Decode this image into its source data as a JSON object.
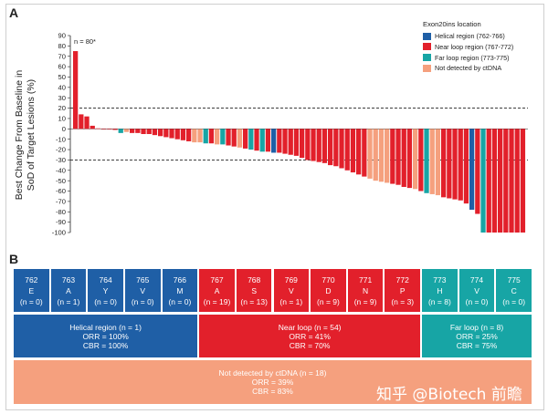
{
  "panel_a_letter": "A",
  "panel_b_letter": "B",
  "watermark": "知乎 @Biotech 前瞻",
  "colors": {
    "helical": "#1f5fa6",
    "near_loop": "#e2202b",
    "far_loop": "#17a5a5",
    "not_detected": "#f5a07e"
  },
  "chart_data": {
    "type": "bar",
    "ylabel_line1": "Best Change From Baseline in",
    "ylabel_line2": "SoD of Target Lesions (%)",
    "ylim": [
      -100,
      90
    ],
    "yticks": [
      90,
      80,
      70,
      60,
      50,
      40,
      30,
      20,
      10,
      0,
      -10,
      -20,
      -30,
      -40,
      -50,
      -60,
      -70,
      -80,
      -90,
      -100
    ],
    "reference_lines": [
      20,
      -30
    ],
    "annotation": "n = 80*",
    "legend": {
      "title": "Exon20ins location",
      "entries": [
        {
          "label": "Helical region (762-766)",
          "key": "helical"
        },
        {
          "label": "Near loop region (767-772)",
          "key": "near_loop"
        },
        {
          "label": "Far loop region (773-775)",
          "key": "far_loop"
        },
        {
          "label": "Not detected by ctDNA",
          "key": "not_detected"
        }
      ]
    },
    "bars": [
      {
        "v": 75,
        "c": "near_loop"
      },
      {
        "v": 14,
        "c": "near_loop"
      },
      {
        "v": 12,
        "c": "near_loop"
      },
      {
        "v": 3,
        "c": "near_loop"
      },
      {
        "v": 0.5,
        "c": "near_loop"
      },
      {
        "v": 0,
        "c": "near_loop"
      },
      {
        "v": 0,
        "c": "near_loop"
      },
      {
        "v": -1,
        "c": "near_loop"
      },
      {
        "v": -4,
        "c": "far_loop"
      },
      {
        "v": -3,
        "c": "not_detected"
      },
      {
        "v": -4,
        "c": "near_loop"
      },
      {
        "v": -4,
        "c": "near_loop"
      },
      {
        "v": -5,
        "c": "near_loop"
      },
      {
        "v": -5,
        "c": "near_loop"
      },
      {
        "v": -6,
        "c": "near_loop"
      },
      {
        "v": -7,
        "c": "near_loop"
      },
      {
        "v": -8,
        "c": "near_loop"
      },
      {
        "v": -9,
        "c": "near_loop"
      },
      {
        "v": -10,
        "c": "near_loop"
      },
      {
        "v": -11,
        "c": "near_loop"
      },
      {
        "v": -12,
        "c": "near_loop"
      },
      {
        "v": -13,
        "c": "not_detected"
      },
      {
        "v": -13,
        "c": "not_detected"
      },
      {
        "v": -14,
        "c": "far_loop"
      },
      {
        "v": -14,
        "c": "near_loop"
      },
      {
        "v": -15,
        "c": "not_detected"
      },
      {
        "v": -15,
        "c": "far_loop"
      },
      {
        "v": -16,
        "c": "near_loop"
      },
      {
        "v": -17,
        "c": "near_loop"
      },
      {
        "v": -18,
        "c": "not_detected"
      },
      {
        "v": -19,
        "c": "near_loop"
      },
      {
        "v": -20,
        "c": "far_loop"
      },
      {
        "v": -21,
        "c": "near_loop"
      },
      {
        "v": -22,
        "c": "far_loop"
      },
      {
        "v": -22,
        "c": "near_loop"
      },
      {
        "v": -23,
        "c": "helical"
      },
      {
        "v": -23,
        "c": "near_loop"
      },
      {
        "v": -24,
        "c": "near_loop"
      },
      {
        "v": -25,
        "c": "near_loop"
      },
      {
        "v": -26,
        "c": "near_loop"
      },
      {
        "v": -28,
        "c": "near_loop"
      },
      {
        "v": -30,
        "c": "near_loop"
      },
      {
        "v": -31,
        "c": "near_loop"
      },
      {
        "v": -32,
        "c": "near_loop"
      },
      {
        "v": -33,
        "c": "near_loop"
      },
      {
        "v": -35,
        "c": "near_loop"
      },
      {
        "v": -36,
        "c": "near_loop"
      },
      {
        "v": -38,
        "c": "near_loop"
      },
      {
        "v": -40,
        "c": "near_loop"
      },
      {
        "v": -42,
        "c": "near_loop"
      },
      {
        "v": -44,
        "c": "near_loop"
      },
      {
        "v": -46,
        "c": "near_loop"
      },
      {
        "v": -48,
        "c": "not_detected"
      },
      {
        "v": -50,
        "c": "not_detected"
      },
      {
        "v": -51,
        "c": "not_detected"
      },
      {
        "v": -52,
        "c": "not_detected"
      },
      {
        "v": -53,
        "c": "near_loop"
      },
      {
        "v": -54,
        "c": "near_loop"
      },
      {
        "v": -56,
        "c": "near_loop"
      },
      {
        "v": -57,
        "c": "near_loop"
      },
      {
        "v": -58,
        "c": "not_detected"
      },
      {
        "v": -60,
        "c": "near_loop"
      },
      {
        "v": -62,
        "c": "far_loop"
      },
      {
        "v": -63,
        "c": "not_detected"
      },
      {
        "v": -64,
        "c": "not_detected"
      },
      {
        "v": -66,
        "c": "near_loop"
      },
      {
        "v": -67,
        "c": "near_loop"
      },
      {
        "v": -68,
        "c": "near_loop"
      },
      {
        "v": -69,
        "c": "near_loop"
      },
      {
        "v": -72,
        "c": "near_loop"
      },
      {
        "v": -78,
        "c": "helical"
      },
      {
        "v": -82,
        "c": "near_loop"
      },
      {
        "v": -100,
        "c": "far_loop"
      },
      {
        "v": -100,
        "c": "near_loop"
      },
      {
        "v": -100,
        "c": "near_loop"
      },
      {
        "v": -100,
        "c": "near_loop"
      },
      {
        "v": -100,
        "c": "near_loop"
      },
      {
        "v": -100,
        "c": "near_loop"
      },
      {
        "v": -100,
        "c": "near_loop"
      },
      {
        "v": -100,
        "c": "near_loop"
      }
    ]
  },
  "residues": [
    {
      "num": "762",
      "aa": "E",
      "n": "(n = 0)",
      "c": "helical"
    },
    {
      "num": "763",
      "aa": "A",
      "n": "(n = 1)",
      "c": "helical"
    },
    {
      "num": "764",
      "aa": "Y",
      "n": "(n = 0)",
      "c": "helical"
    },
    {
      "num": "765",
      "aa": "V",
      "n": "(n = 0)",
      "c": "helical"
    },
    {
      "num": "766",
      "aa": "M",
      "n": "(n = 0)",
      "c": "helical"
    },
    {
      "num": "767",
      "aa": "A",
      "n": "(n = 19)",
      "c": "near_loop"
    },
    {
      "num": "768",
      "aa": "S",
      "n": "(n = 13)",
      "c": "near_loop"
    },
    {
      "num": "769",
      "aa": "V",
      "n": "(n = 1)",
      "c": "near_loop"
    },
    {
      "num": "770",
      "aa": "D",
      "n": "(n = 9)",
      "c": "near_loop"
    },
    {
      "num": "771",
      "aa": "N",
      "n": "(n = 9)",
      "c": "near_loop"
    },
    {
      "num": "772",
      "aa": "P",
      "n": "(n = 3)",
      "c": "near_loop"
    },
    {
      "num": "773",
      "aa": "H",
      "n": "(n = 8)",
      "c": "far_loop"
    },
    {
      "num": "774",
      "aa": "V",
      "n": "(n = 0)",
      "c": "far_loop"
    },
    {
      "num": "775",
      "aa": "C",
      "n": "(n = 0)",
      "c": "far_loop"
    }
  ],
  "groups": [
    {
      "title": "Helical region (n = 1)",
      "orr": "ORR = 100%",
      "cbr": "CBR = 100%",
      "c": "helical"
    },
    {
      "title": "Near loop (n = 54)",
      "orr": "ORR = 41%",
      "cbr": "CBR = 70%",
      "c": "near_loop"
    },
    {
      "title": "Far loop (n = 8)",
      "orr": "ORR = 25%",
      "cbr": "CBR = 75%",
      "c": "far_loop"
    },
    {
      "title": "Not detected by ctDNA (n = 18)",
      "orr": "ORR = 39%",
      "cbr": "CBR = 83%",
      "c": "not_detected"
    }
  ]
}
